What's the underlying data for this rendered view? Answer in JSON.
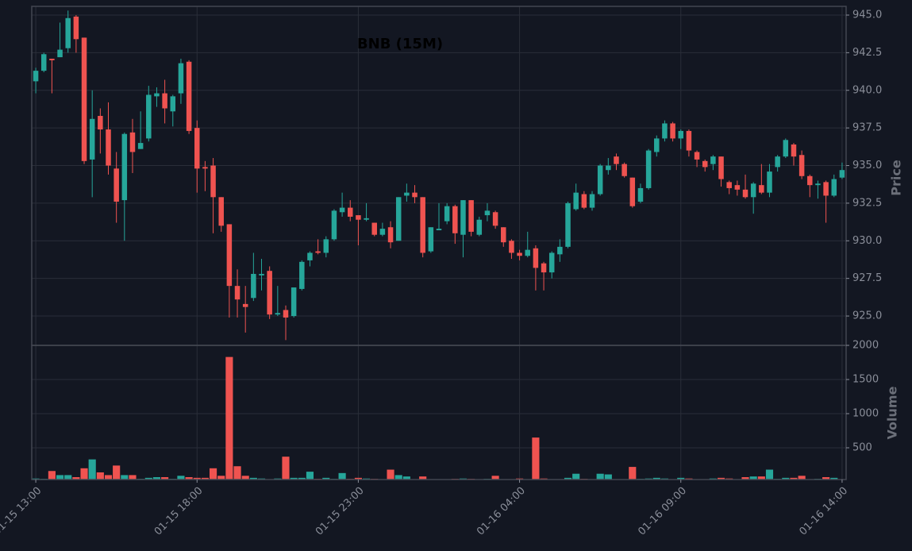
{
  "chart_data": {
    "type": "candlestick",
    "title": "BNB (15M)",
    "ylabel": "Price",
    "categories": [
      "01-15 13:00",
      null,
      null,
      null,
      null,
      null,
      null,
      null,
      null,
      null,
      null,
      null,
      null,
      null,
      null,
      null,
      null,
      null,
      null,
      null,
      "01-15 18:00",
      null,
      null,
      null,
      null,
      null,
      null,
      null,
      null,
      null,
      null,
      null,
      null,
      null,
      null,
      null,
      null,
      null,
      null,
      null,
      "01-15 23:00",
      null,
      null,
      null,
      null,
      null,
      null,
      null,
      null,
      null,
      null,
      null,
      null,
      null,
      null,
      null,
      null,
      null,
      null,
      null,
      "01-16 04:00",
      null,
      null,
      null,
      null,
      null,
      null,
      null,
      null,
      null,
      null,
      null,
      null,
      null,
      null,
      null,
      null,
      null,
      null,
      null,
      "01-16 09:00",
      null,
      null,
      null,
      null,
      null,
      null,
      null,
      null,
      null,
      null,
      null,
      null,
      null,
      null,
      null,
      null,
      null,
      null,
      null,
      "01-16 14:00"
    ],
    "open": [
      940.6,
      941.3,
      942.1,
      942.2,
      942.8,
      944.9,
      943.5,
      935.4,
      938.3,
      937.4,
      934.8,
      932.7,
      937.2,
      936.1,
      936.8,
      939.6,
      939.8,
      938.6,
      939.8,
      941.9,
      937.5,
      934.9,
      935.0,
      932.9,
      931.1,
      927.0,
      925.8,
      926.2,
      927.7,
      928.0,
      925.1,
      925.4,
      925.0,
      926.8,
      928.7,
      929.3,
      929.2,
      930.1,
      931.9,
      932.2,
      931.7,
      931.4,
      931.2,
      930.4,
      930.9,
      930.0,
      933.0,
      933.2,
      932.9,
      929.3,
      930.7,
      931.3,
      932.3,
      930.4,
      932.7,
      930.4,
      931.7,
      931.9,
      930.9,
      930.0,
      929.2,
      929.0,
      929.5,
      928.5,
      927.9,
      929.1,
      929.6,
      932.1,
      933.1,
      932.2,
      933.1,
      934.7,
      935.6,
      935.1,
      934.2,
      932.6,
      933.5,
      935.9,
      936.8,
      937.8,
      936.8,
      937.3,
      935.9,
      935.3,
      935.1,
      935.6,
      933.9,
      933.7,
      933.4,
      932.9,
      933.7,
      933.2,
      934.9,
      935.6,
      936.4,
      935.7,
      934.3,
      933.7,
      933.9,
      933.0,
      934.2
    ],
    "high": [
      941.5,
      942.5,
      942.1,
      944.5,
      945.3,
      945.0,
      943.5,
      940.0,
      938.8,
      939.2,
      935.9,
      937.2,
      938.1,
      938.6,
      940.3,
      940.2,
      940.7,
      939.7,
      942.1,
      942.0,
      938.0,
      935.3,
      935.5,
      932.9,
      931.1,
      928.1,
      927.0,
      929.2,
      928.8,
      928.3,
      927.0,
      925.7,
      926.9,
      928.7,
      929.3,
      930.1,
      930.3,
      932.1,
      933.2,
      932.7,
      931.7,
      932.5,
      931.2,
      931.2,
      931.3,
      932.9,
      933.8,
      933.7,
      932.9,
      930.9,
      932.5,
      932.5,
      932.4,
      932.7,
      932.7,
      931.6,
      932.5,
      932.0,
      930.9,
      930.1,
      929.4,
      930.6,
      929.7,
      928.6,
      929.3,
      930.1,
      932.6,
      933.8,
      933.3,
      933.3,
      935.1,
      935.5,
      935.8,
      935.2,
      934.2,
      933.8,
      936.1,
      937.0,
      938.0,
      937.9,
      937.4,
      937.4,
      936.0,
      935.4,
      935.7,
      935.6,
      934.0,
      934.0,
      934.4,
      933.9,
      935.1,
      935.1,
      935.7,
      936.8,
      936.5,
      936.0,
      934.4,
      934.0,
      934.0,
      934.4,
      935.2
    ],
    "low": [
      939.8,
      941.2,
      939.8,
      942.2,
      942.5,
      942.5,
      935.1,
      932.9,
      935.8,
      934.4,
      931.2,
      930.0,
      934.5,
      936.1,
      936.6,
      938.9,
      937.8,
      937.6,
      939.1,
      937.1,
      933.2,
      933.3,
      930.5,
      930.6,
      924.9,
      924.9,
      923.9,
      926.0,
      926.7,
      924.8,
      925.0,
      923.4,
      924.9,
      926.7,
      928.3,
      929.1,
      928.9,
      930.0,
      931.6,
      931.3,
      929.7,
      931.3,
      930.3,
      930.3,
      929.5,
      930.0,
      932.6,
      932.5,
      928.9,
      929.2,
      930.7,
      931.1,
      929.8,
      928.9,
      930.3,
      930.3,
      931.3,
      930.8,
      929.6,
      928.8,
      928.7,
      928.9,
      926.7,
      926.7,
      927.5,
      928.6,
      929.5,
      932.0,
      932.1,
      932.0,
      933.0,
      934.4,
      934.7,
      934.2,
      932.2,
      932.5,
      933.4,
      935.6,
      936.6,
      936.6,
      936.1,
      935.6,
      934.9,
      934.6,
      934.7,
      933.6,
      933.1,
      933.0,
      932.8,
      931.8,
      933.1,
      932.9,
      934.6,
      935.5,
      935.0,
      934.1,
      932.9,
      932.8,
      931.2,
      932.9,
      934.1
    ],
    "close": [
      941.3,
      942.4,
      942.0,
      942.7,
      944.8,
      943.4,
      935.3,
      938.1,
      937.4,
      935.0,
      932.6,
      937.1,
      935.9,
      936.5,
      939.7,
      939.8,
      938.8,
      939.6,
      941.8,
      937.3,
      934.8,
      934.8,
      932.9,
      931.0,
      927.0,
      926.1,
      925.6,
      927.8,
      927.8,
      925.1,
      925.2,
      924.9,
      926.9,
      928.6,
      929.2,
      929.2,
      930.1,
      932.0,
      932.2,
      931.6,
      931.4,
      931.5,
      930.4,
      930.8,
      929.9,
      932.9,
      933.2,
      932.9,
      929.2,
      930.9,
      930.8,
      932.3,
      930.5,
      932.7,
      930.6,
      931.4,
      932.0,
      931.0,
      929.9,
      929.2,
      929.0,
      929.4,
      928.2,
      927.9,
      929.2,
      929.6,
      932.5,
      933.2,
      932.2,
      933.1,
      935.0,
      935.0,
      935.1,
      934.3,
      932.3,
      933.5,
      936.0,
      936.8,
      937.8,
      936.8,
      937.3,
      936.0,
      935.4,
      934.9,
      935.6,
      934.1,
      933.5,
      933.4,
      932.9,
      933.8,
      933.2,
      934.6,
      935.6,
      936.7,
      935.6,
      934.3,
      933.7,
      933.8,
      933.0,
      934.1,
      934.7
    ],
    "up_color": "#26a69a",
    "down_color": "#ef5350",
    "ylim": [
      923.05,
      945.58
    ],
    "yticks": [
      {
        "value": 925,
        "label": "925.0"
      },
      {
        "value": 927.5,
        "label": "927.5"
      },
      {
        "value": 930,
        "label": "930.0"
      },
      {
        "value": 932.5,
        "label": "932.5"
      },
      {
        "value": 935,
        "label": "935.0"
      },
      {
        "value": 937.5,
        "label": "937.5"
      },
      {
        "value": 940,
        "label": "940.0"
      },
      {
        "value": 942.5,
        "label": "942.5"
      },
      {
        "value": 945,
        "label": "945.0"
      }
    ],
    "grid": true,
    "volume": {
      "label": "Volume",
      "values": [
        50,
        45,
        160,
        100,
        100,
        70,
        200,
        330,
        140,
        100,
        240,
        100,
        100,
        45,
        60,
        70,
        70,
        45,
        90,
        70,
        60,
        60,
        200,
        90,
        1830,
        230,
        90,
        60,
        50,
        40,
        50,
        370,
        60,
        60,
        150,
        45,
        60,
        45,
        130,
        45,
        60,
        50,
        45,
        40,
        180,
        100,
        80,
        40,
        80,
        40,
        40,
        40,
        45,
        50,
        45,
        40,
        45,
        90,
        40,
        40,
        50,
        40,
        650,
        50,
        40,
        40,
        60,
        120,
        45,
        40,
        120,
        110,
        40,
        40,
        220,
        45,
        50,
        60,
        50,
        40,
        60,
        50,
        40,
        40,
        50,
        60,
        50,
        40,
        70,
        80,
        80,
        180,
        45,
        60,
        60,
        90,
        40,
        45,
        70,
        60,
        40
      ],
      "ylim": [
        35,
        2000
      ],
      "yticks": [
        500,
        1000,
        1500,
        2000
      ]
    }
  }
}
